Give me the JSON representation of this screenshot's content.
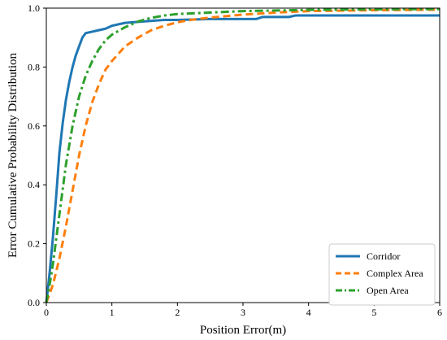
{
  "chart_data": {
    "type": "line",
    "title": "",
    "xlabel": "Position Error(m)",
    "ylabel": "Error Cumulative Probability Distribution",
    "xlim": [
      0,
      6
    ],
    "ylim": [
      0,
      1.0
    ],
    "xticks": [
      "0",
      "1",
      "2",
      "3",
      "4",
      "5",
      "6"
    ],
    "yticks": [
      "0.0",
      "0.2",
      "0.4",
      "0.6",
      "0.8",
      "1.0"
    ],
    "grid": false,
    "legend_position": "bottom-right",
    "series": [
      {
        "name": "Corridor",
        "color": "#1f77b4",
        "style": "solid",
        "x": [
          0,
          0.05,
          0.1,
          0.15,
          0.2,
          0.25,
          0.3,
          0.35,
          0.4,
          0.45,
          0.5,
          0.55,
          0.6,
          0.7,
          0.8,
          0.9,
          1.0,
          1.2,
          1.5,
          1.8,
          2.0,
          2.5,
          3.0,
          3.2,
          3.3,
          3.7,
          3.8,
          4.5,
          5.0,
          6.0
        ],
        "y": [
          0,
          0.1,
          0.22,
          0.36,
          0.51,
          0.61,
          0.69,
          0.75,
          0.8,
          0.84,
          0.87,
          0.9,
          0.915,
          0.92,
          0.925,
          0.93,
          0.94,
          0.95,
          0.955,
          0.96,
          0.96,
          0.963,
          0.963,
          0.963,
          0.97,
          0.97,
          0.975,
          0.975,
          0.975,
          0.975
        ]
      },
      {
        "name": "Complex Area",
        "color": "#ff7f0e",
        "style": "dashed",
        "x": [
          0,
          0.1,
          0.2,
          0.3,
          0.4,
          0.5,
          0.6,
          0.7,
          0.8,
          0.9,
          1.0,
          1.2,
          1.4,
          1.6,
          1.8,
          2.0,
          2.2,
          2.5,
          3.0,
          3.5,
          4.0,
          5.0,
          6.0
        ],
        "y": [
          0,
          0.06,
          0.15,
          0.26,
          0.38,
          0.5,
          0.6,
          0.68,
          0.74,
          0.79,
          0.82,
          0.87,
          0.9,
          0.925,
          0.94,
          0.952,
          0.96,
          0.968,
          0.978,
          0.985,
          0.99,
          0.993,
          0.995
        ]
      },
      {
        "name": "Open Area",
        "color": "#2ca02c",
        "style": "dashdot",
        "x": [
          0,
          0.05,
          0.1,
          0.2,
          0.3,
          0.4,
          0.5,
          0.6,
          0.7,
          0.8,
          0.9,
          1.0,
          1.2,
          1.4,
          1.6,
          1.8,
          2.0,
          2.5,
          3.0,
          3.5,
          4.0,
          5.0,
          6.0
        ],
        "y": [
          0,
          0.06,
          0.13,
          0.3,
          0.47,
          0.6,
          0.7,
          0.77,
          0.82,
          0.86,
          0.89,
          0.91,
          0.935,
          0.955,
          0.967,
          0.975,
          0.98,
          0.985,
          0.99,
          0.992,
          0.994,
          0.996,
          0.997
        ]
      }
    ]
  }
}
